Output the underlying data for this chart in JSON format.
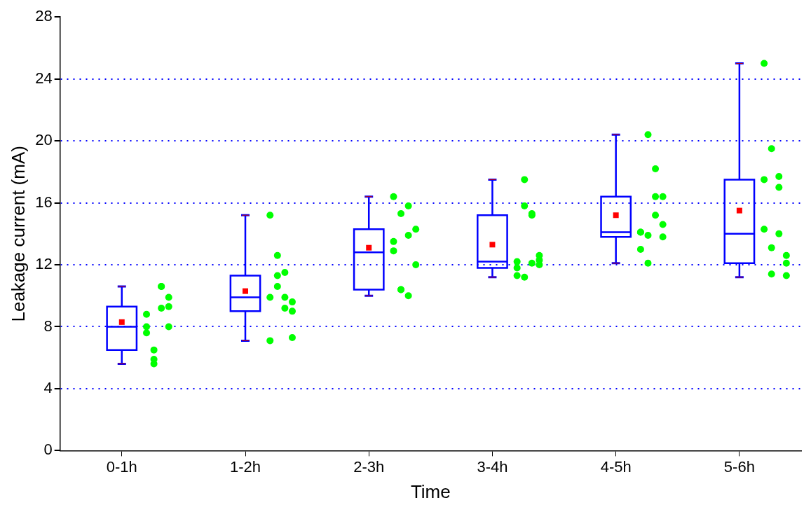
{
  "chart_data": {
    "type": "box",
    "xlabel": "Time",
    "ylabel": "Leakage current (mA)",
    "categories": [
      "0-1h",
      "1-2h",
      "2-3h",
      "3-4h",
      "4-5h",
      "5-6h"
    ],
    "ylim": [
      0,
      28
    ],
    "yticks": [
      0,
      4,
      8,
      12,
      16,
      20,
      24,
      28
    ],
    "grid": "y",
    "marker": "circle",
    "series": [
      {
        "type": "box",
        "color": "#0000ff",
        "boxes": [
          {
            "low": 5.6,
            "q1": 6.5,
            "median": 8.0,
            "q3": 9.3,
            "high": 10.6,
            "mean": 8.3
          },
          {
            "low": 7.1,
            "q1": 9.0,
            "median": 9.9,
            "q3": 11.3,
            "high": 15.2,
            "mean": 10.3
          },
          {
            "low": 10.0,
            "q1": 10.4,
            "median": 12.8,
            "q3": 14.3,
            "high": 16.4,
            "mean": 13.1
          },
          {
            "low": 11.2,
            "q1": 11.8,
            "median": 12.2,
            "q3": 15.2,
            "high": 17.5,
            "mean": 13.3
          },
          {
            "low": 12.1,
            "q1": 13.8,
            "median": 14.1,
            "q3": 16.4,
            "high": 20.4,
            "mean": 15.2
          },
          {
            "low": 11.2,
            "q1": 12.1,
            "median": 14.0,
            "q3": 17.5,
            "high": 25.0,
            "mean": 15.5
          }
        ]
      },
      {
        "type": "scatter",
        "color": "#00ff00",
        "x": [
          "0-1h",
          "0-1h",
          "0-1h",
          "0-1h",
          "0-1h",
          "0-1h",
          "0-1h",
          "0-1h",
          "0-1h",
          "0-1h",
          "0-1h",
          "0-1h",
          "1-2h",
          "1-2h",
          "1-2h",
          "1-2h",
          "1-2h",
          "1-2h",
          "1-2h",
          "1-2h",
          "1-2h",
          "1-2h",
          "1-2h",
          "1-2h",
          "2-3h",
          "2-3h",
          "2-3h",
          "2-3h",
          "2-3h",
          "2-3h",
          "2-3h",
          "2-3h",
          "2-3h",
          "2-3h",
          "2-3h",
          "3-4h",
          "3-4h",
          "3-4h",
          "3-4h",
          "3-4h",
          "3-4h",
          "3-4h",
          "3-4h",
          "3-4h",
          "3-4h",
          "3-4h",
          "3-4h",
          "4-5h",
          "4-5h",
          "4-5h",
          "4-5h",
          "4-5h",
          "4-5h",
          "4-5h",
          "4-5h",
          "4-5h",
          "4-5h",
          "4-5h",
          "4-5h",
          "5-6h",
          "5-6h",
          "5-6h",
          "5-6h",
          "5-6h",
          "5-6h",
          "5-6h",
          "5-6h",
          "5-6h",
          "5-6h",
          "5-6h",
          "5-6h"
        ],
        "values": [
          8.8,
          6.5,
          10.6,
          9.3,
          8.0,
          5.9,
          10.6,
          9.9,
          7.6,
          5.6,
          9.2,
          8.0,
          9.9,
          11.3,
          9.9,
          7.3,
          15.2,
          12.6,
          11.5,
          9.0,
          7.1,
          10.6,
          9.2,
          9.6,
          12.9,
          10.4,
          15.8,
          12.0,
          16.4,
          15.3,
          10.0,
          14.3,
          13.5,
          10.4,
          13.9,
          12.2,
          11.2,
          15.2,
          12.3,
          11.3,
          17.5,
          15.3,
          12.6,
          11.8,
          15.8,
          12.1,
          12.0,
          14.1,
          13.9,
          16.4,
          14.6,
          13.0,
          20.4,
          18.2,
          16.4,
          14.1,
          12.1,
          15.2,
          13.8,
          17.5,
          13.1,
          14.0,
          11.3,
          25.0,
          19.5,
          17.0,
          12.6,
          14.3,
          11.4,
          17.7,
          12.1
        ]
      }
    ]
  }
}
